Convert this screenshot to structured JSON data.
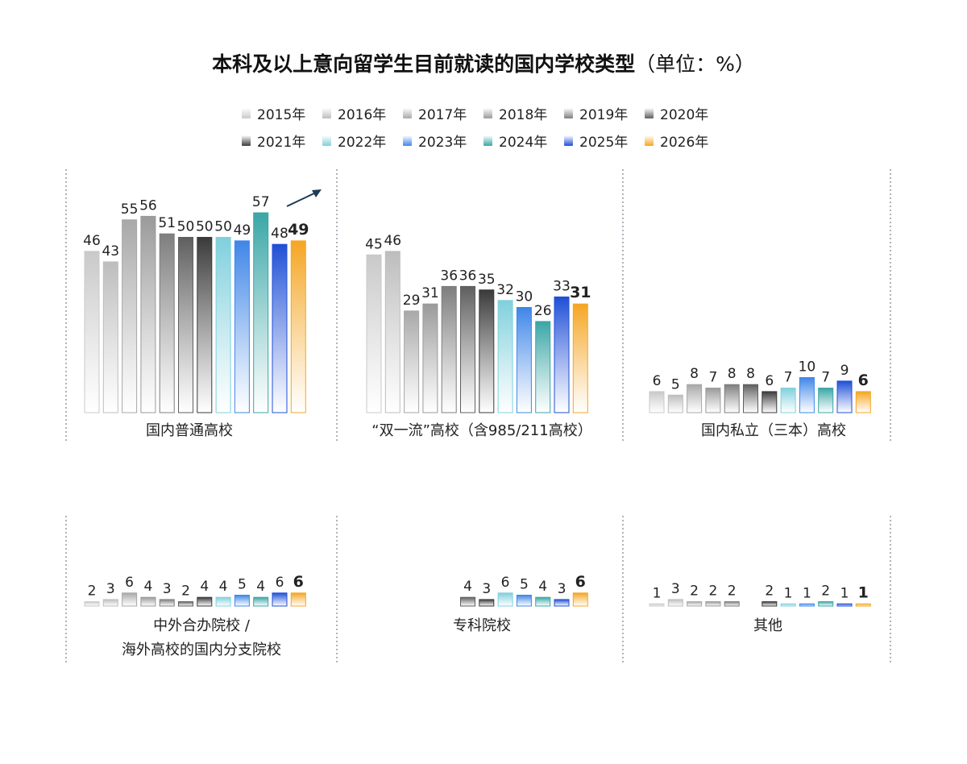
{
  "chart_data": {
    "type": "bar",
    "title": "本科及以上意向留学生目前就读的国内学校类型",
    "unit": "（单位：%）",
    "legend_placement": "top",
    "grid": false,
    "years": [
      "2015年",
      "2016年",
      "2017年",
      "2018年",
      "2019年",
      "2020年",
      "2021年",
      "2022年",
      "2023年",
      "2024年",
      "2025年",
      "2026年"
    ],
    "colors": [
      "#c9c9c9",
      "#bdbdbd",
      "#a8a8a8",
      "#9a9a9a",
      "#7e7e7e",
      "#5f5f5f",
      "#3a3a3a",
      "#7fd0dc",
      "#3f86e8",
      "#3aa6a6",
      "#1f4fd6",
      "#f5a623"
    ],
    "panels": [
      {
        "label": "国内普通高校",
        "values": [
          46,
          43,
          55,
          56,
          51,
          50,
          50,
          50,
          49,
          57,
          48,
          49
        ]
      },
      {
        "label": "“双一流”高校（含985/211高校）",
        "values": [
          45,
          46,
          29,
          31,
          36,
          36,
          35,
          32,
          30,
          26,
          33,
          31
        ]
      },
      {
        "label": "国内私立（三本）高校",
        "values": [
          6,
          5,
          8,
          7,
          8,
          8,
          6,
          7,
          10,
          7,
          9,
          6
        ]
      },
      {
        "label": "中外合办院校 /\n海外高校的国内分支院校",
        "values": [
          2,
          3,
          6,
          4,
          3,
          2,
          4,
          4,
          5,
          4,
          6,
          6
        ]
      },
      {
        "label": "专科院校",
        "values": [
          null,
          null,
          null,
          null,
          null,
          4,
          3,
          6,
          5,
          4,
          3,
          6
        ]
      },
      {
        "label": "其他",
        "values": [
          1,
          3,
          2,
          2,
          2,
          null,
          2,
          1,
          1,
          2,
          1,
          1
        ]
      }
    ]
  }
}
